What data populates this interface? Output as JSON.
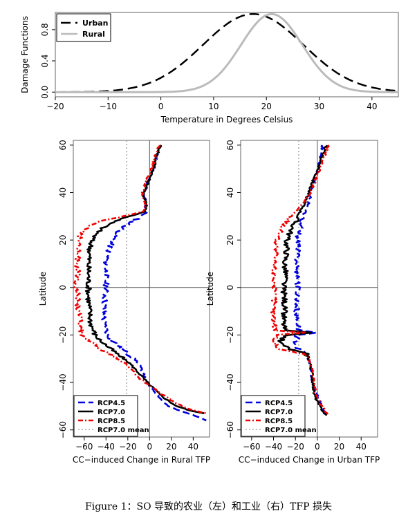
{
  "caption": "Figure 1：SO 导致的农业（左）和工业（右）TFP 损失",
  "chart_data": [
    {
      "type": "line",
      "ylabel": "Damage Functions",
      "xlabel": "Temperature in Degrees Celsius",
      "xlim": [
        -20,
        45
      ],
      "ylim": [
        0,
        1
      ],
      "xticks": [
        "−20",
        "−10",
        "0",
        "10",
        "20",
        "30",
        "40"
      ],
      "xtick_values": [
        -20,
        -10,
        0,
        10,
        20,
        30,
        40
      ],
      "yticks": [
        "0.0",
        "0.4",
        "0.8"
      ],
      "ytick_values": [
        0,
        0.4,
        0.8
      ],
      "legend_position": "top-left",
      "series": [
        {
          "name": "Urban",
          "color": "#000000",
          "style": "dashed",
          "peak_temp": 17.5,
          "spread": 9.5
        },
        {
          "name": "Rural",
          "color": "#bbbbbb",
          "style": "solid",
          "peak_temp": 21,
          "spread": 5.8
        }
      ]
    },
    {
      "type": "line",
      "ylabel": "Latitude",
      "xlabel": "CC−induced Change in Rural TFP",
      "xlim": [
        -70,
        55
      ],
      "ylim": [
        -63,
        62
      ],
      "xticks": [
        "−60",
        "−40",
        "−20",
        "0",
        "20",
        "40"
      ],
      "xtick_values": [
        -60,
        -40,
        -20,
        0,
        20,
        40
      ],
      "yticks": [
        "−60",
        "−40",
        "−20",
        "0",
        "20",
        "40",
        "60"
      ],
      "ytick_values": [
        -60,
        -40,
        -20,
        0,
        20,
        40,
        60
      ],
      "reference_line": {
        "name": "RCP7.0 mean",
        "x": -21
      },
      "legend_position": "bottom-left",
      "series": [
        {
          "name": "RCP4.5",
          "color": "#0000dd",
          "style": "longdash",
          "points": [
            [
              60,
              10
            ],
            [
              57,
              8
            ],
            [
              55,
              6
            ],
            [
              50,
              4
            ],
            [
              45,
              -1
            ],
            [
              42,
              -3
            ],
            [
              40,
              -6
            ],
            [
              38,
              -5
            ],
            [
              36,
              -3
            ],
            [
              34,
              -4
            ],
            [
              32,
              -2
            ],
            [
              30,
              -8
            ],
            [
              28,
              -15
            ],
            [
              26,
              -22
            ],
            [
              24,
              -27
            ],
            [
              22,
              -31
            ],
            [
              20,
              -34
            ],
            [
              15,
              -38
            ],
            [
              10,
              -40
            ],
            [
              5,
              -40
            ],
            [
              0,
              -40
            ],
            [
              -5,
              -41
            ],
            [
              -10,
              -42
            ],
            [
              -15,
              -42
            ],
            [
              -20,
              -38
            ],
            [
              -22,
              -35
            ],
            [
              -25,
              -28
            ],
            [
              -28,
              -20
            ],
            [
              -30,
              -14
            ],
            [
              -32,
              -10
            ],
            [
              -35,
              -7
            ],
            [
              -38,
              -4
            ],
            [
              -40,
              -2
            ],
            [
              -41,
              -1
            ],
            [
              -43,
              3
            ],
            [
              -45,
              7
            ],
            [
              -48,
              12
            ],
            [
              -50,
              17
            ],
            [
              -52,
              28
            ],
            [
              -54,
              42
            ],
            [
              -56,
              52
            ]
          ]
        },
        {
          "name": "RCP7.0",
          "color": "#000000",
          "style": "solid",
          "points": [
            [
              60,
              10
            ],
            [
              57,
              8
            ],
            [
              55,
              6
            ],
            [
              50,
              4
            ],
            [
              45,
              -1
            ],
            [
              42,
              -3
            ],
            [
              40,
              -6
            ],
            [
              38,
              -5
            ],
            [
              36,
              -3
            ],
            [
              34,
              -3
            ],
            [
              32,
              -4
            ],
            [
              30,
              -18
            ],
            [
              28,
              -32
            ],
            [
              26,
              -40
            ],
            [
              24,
              -46
            ],
            [
              22,
              -50
            ],
            [
              20,
              -53
            ],
            [
              15,
              -55
            ],
            [
              10,
              -56
            ],
            [
              5,
              -56
            ],
            [
              0,
              -56
            ],
            [
              -5,
              -56
            ],
            [
              -10,
              -55
            ],
            [
              -15,
              -54
            ],
            [
              -20,
              -50
            ],
            [
              -22,
              -46
            ],
            [
              -25,
              -38
            ],
            [
              -28,
              -30
            ],
            [
              -30,
              -24
            ],
            [
              -32,
              -18
            ],
            [
              -35,
              -12
            ],
            [
              -38,
              -6
            ],
            [
              -40,
              -2
            ],
            [
              -41,
              0
            ],
            [
              -43,
              5
            ],
            [
              -45,
              9
            ],
            [
              -48,
              18
            ],
            [
              -50,
              25
            ],
            [
              -52,
              38
            ],
            [
              -53,
              50
            ]
          ]
        },
        {
          "name": "RCP8.5",
          "color": "#ee0000",
          "style": "dotdash",
          "points": [
            [
              60,
              9
            ],
            [
              57,
              7
            ],
            [
              55,
              5
            ],
            [
              50,
              2
            ],
            [
              45,
              -3
            ],
            [
              42,
              -5
            ],
            [
              40,
              -7
            ],
            [
              38,
              -6
            ],
            [
              36,
              -4
            ],
            [
              34,
              -5
            ],
            [
              32,
              -6
            ],
            [
              30,
              -25
            ],
            [
              28,
              -45
            ],
            [
              26,
              -55
            ],
            [
              24,
              -60
            ],
            [
              22,
              -63
            ],
            [
              20,
              -65
            ],
            [
              15,
              -66
            ],
            [
              10,
              -66
            ],
            [
              5,
              -66
            ],
            [
              0,
              -67
            ],
            [
              -5,
              -66
            ],
            [
              -10,
              -65
            ],
            [
              -15,
              -64
            ],
            [
              -20,
              -62
            ],
            [
              -22,
              -58
            ],
            [
              -25,
              -48
            ],
            [
              -28,
              -38
            ],
            [
              -30,
              -30
            ],
            [
              -32,
              -22
            ],
            [
              -35,
              -16
            ],
            [
              -38,
              -10
            ],
            [
              -40,
              -4
            ],
            [
              -41,
              -1
            ],
            [
              -43,
              6
            ],
            [
              -45,
              11
            ],
            [
              -48,
              22
            ],
            [
              -50,
              30
            ],
            [
              -52,
              42
            ],
            [
              -53,
              52
            ]
          ]
        }
      ]
    },
    {
      "type": "line",
      "ylabel": "Latitude",
      "xlabel": "CC−induced Change in Urban TFP",
      "xlim": [
        -70,
        55
      ],
      "ylim": [
        -63,
        62
      ],
      "xticks": [
        "−60",
        "−40",
        "−20",
        "0",
        "20",
        "40"
      ],
      "xtick_values": [
        -60,
        -40,
        -20,
        0,
        20,
        40
      ],
      "yticks": [
        "−60",
        "−40",
        "−20",
        "0",
        "20",
        "40",
        "60"
      ],
      "ytick_values": [
        -60,
        -40,
        -20,
        0,
        20,
        40,
        60
      ],
      "reference_line": {
        "name": "RCP7.0 mean",
        "x": -17
      },
      "legend_position": "bottom-left",
      "series": [
        {
          "name": "RCP4.5",
          "color": "#0000dd",
          "style": "longdash",
          "points": [
            [
              60,
              5
            ],
            [
              55,
              3
            ],
            [
              50,
              1
            ],
            [
              45,
              -3
            ],
            [
              40,
              -6
            ],
            [
              35,
              -8
            ],
            [
              30,
              -13
            ],
            [
              25,
              -16
            ],
            [
              20,
              -18
            ],
            [
              15,
              -18
            ],
            [
              10,
              -19
            ],
            [
              5,
              -18
            ],
            [
              0,
              -18
            ],
            [
              -5,
              -18
            ],
            [
              -10,
              -19
            ],
            [
              -15,
              -18
            ],
            [
              -18,
              -17
            ],
            [
              -19,
              0
            ],
            [
              -20,
              -18
            ],
            [
              -25,
              -20
            ],
            [
              -28,
              -10
            ],
            [
              -30,
              -8
            ],
            [
              -35,
              -6
            ],
            [
              -40,
              -5
            ],
            [
              -45,
              0
            ],
            [
              -50,
              4
            ],
            [
              -54,
              9
            ]
          ]
        },
        {
          "name": "RCP7.0",
          "color": "#000000",
          "style": "solid",
          "points": [
            [
              60,
              8
            ],
            [
              55,
              4
            ],
            [
              50,
              1
            ],
            [
              45,
              -4
            ],
            [
              40,
              -8
            ],
            [
              35,
              -12
            ],
            [
              30,
              -18
            ],
            [
              25,
              -23
            ],
            [
              20,
              -28
            ],
            [
              15,
              -28
            ],
            [
              10,
              -30
            ],
            [
              5,
              -29
            ],
            [
              0,
              -31
            ],
            [
              -5,
              -30
            ],
            [
              -10,
              -30
            ],
            [
              -15,
              -31
            ],
            [
              -18,
              -30
            ],
            [
              -19,
              -8
            ],
            [
              -20,
              -28
            ],
            [
              -23,
              -35
            ],
            [
              -26,
              -25
            ],
            [
              -28,
              -10
            ],
            [
              -30,
              -8
            ],
            [
              -35,
              -5
            ],
            [
              -40,
              -4
            ],
            [
              -45,
              -3
            ],
            [
              -50,
              2
            ],
            [
              -54,
              8
            ]
          ]
        },
        {
          "name": "RCP8.5",
          "color": "#ee0000",
          "style": "dotdash",
          "points": [
            [
              60,
              10
            ],
            [
              55,
              6
            ],
            [
              50,
              2
            ],
            [
              45,
              -2
            ],
            [
              40,
              -6
            ],
            [
              35,
              -14
            ],
            [
              30,
              -24
            ],
            [
              25,
              -32
            ],
            [
              20,
              -37
            ],
            [
              15,
              -38
            ],
            [
              10,
              -40
            ],
            [
              5,
              -39
            ],
            [
              0,
              -40
            ],
            [
              -5,
              -39
            ],
            [
              -10,
              -40
            ],
            [
              -15,
              -39
            ],
            [
              -18,
              -38
            ],
            [
              -19,
              -12
            ],
            [
              -20,
              -36
            ],
            [
              -23,
              -40
            ],
            [
              -26,
              -35
            ],
            [
              -28,
              -12
            ],
            [
              -30,
              -8
            ],
            [
              -35,
              -4
            ],
            [
              -40,
              -3
            ],
            [
              -45,
              -2
            ],
            [
              -50,
              4
            ],
            [
              -54,
              10
            ]
          ]
        }
      ]
    }
  ]
}
